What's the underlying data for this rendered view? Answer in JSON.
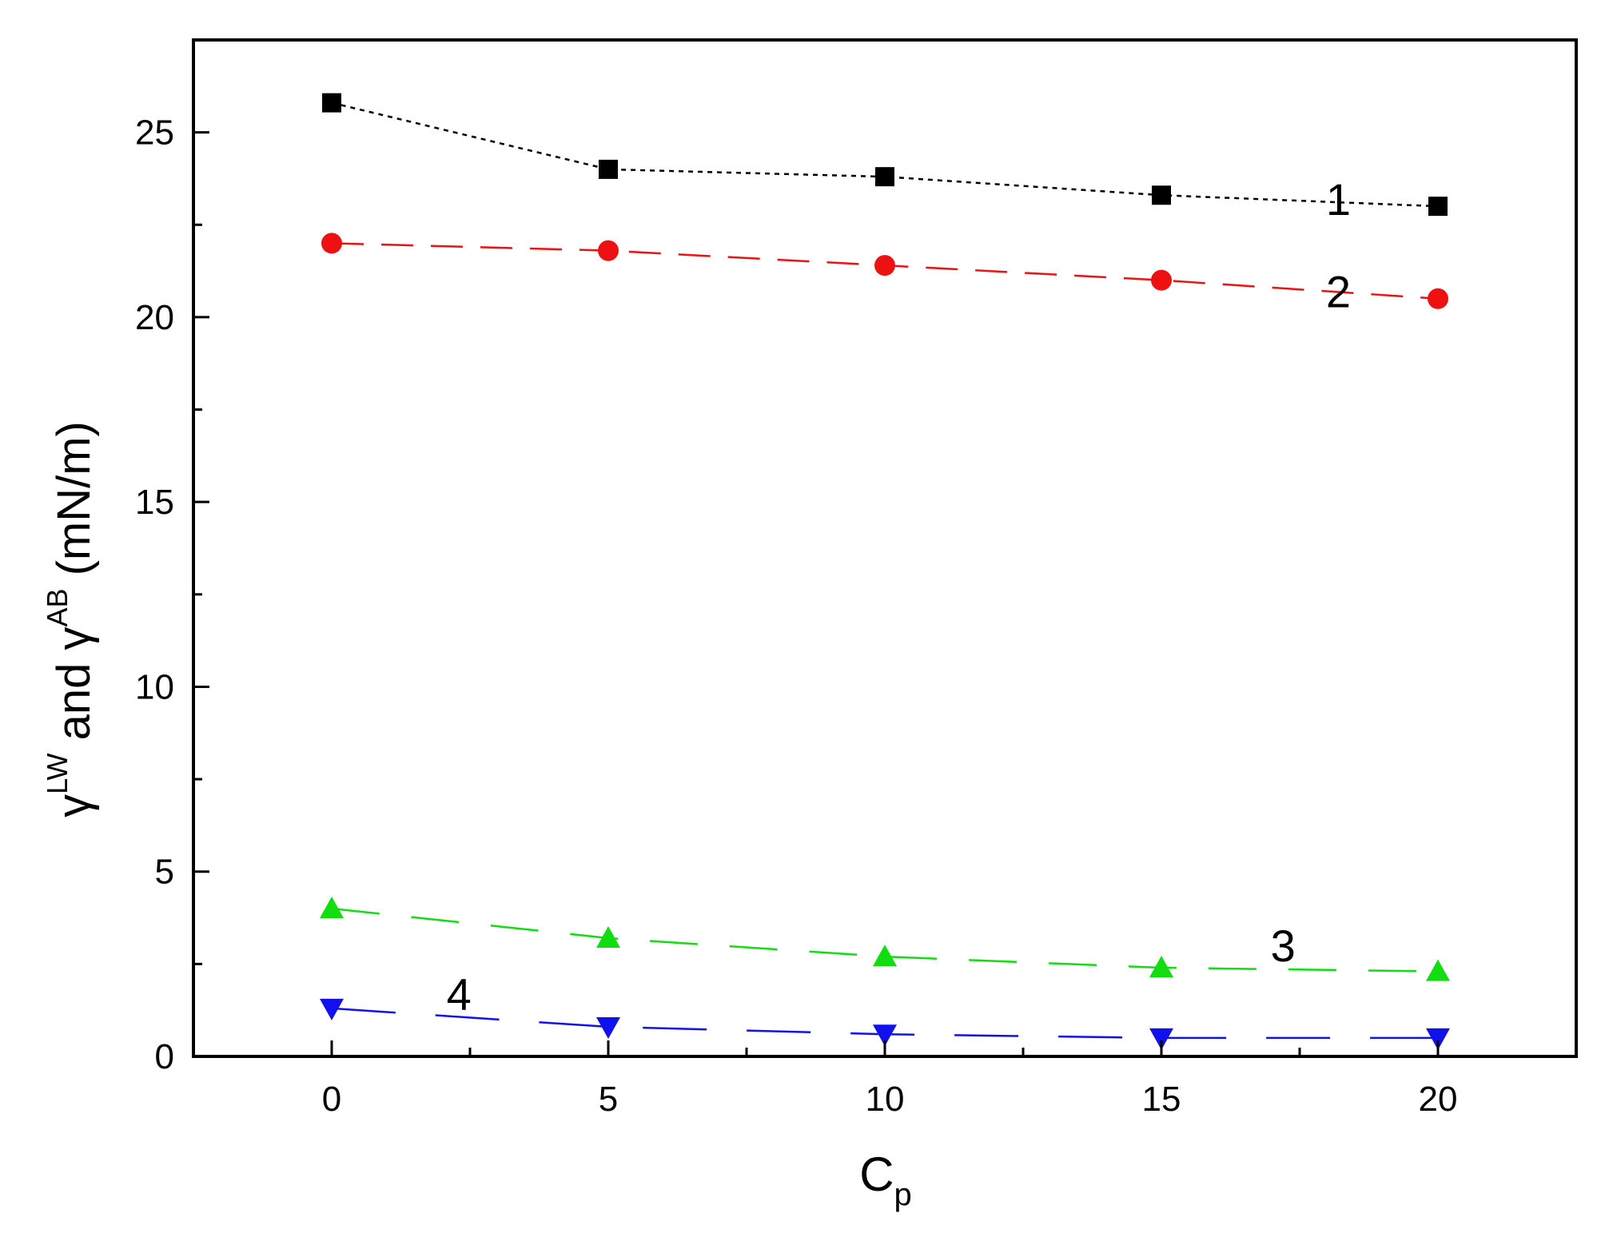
{
  "chart_data": {
    "type": "line",
    "xlabel": {
      "main": "C",
      "sub": "p"
    },
    "ylabel": {
      "g1": "γ",
      "sup1": "LW",
      "mid": " and ",
      "g2": "γ",
      "sup2": "AB",
      "unit": " (mN/m)"
    },
    "xlim": [
      -2.5,
      22.5
    ],
    "ylim": [
      0,
      27.5
    ],
    "xticks": [
      0,
      5,
      10,
      15,
      20
    ],
    "xtick_labels": [
      "0",
      "5",
      "10",
      "15",
      "20"
    ],
    "yticks": [
      0,
      5,
      10,
      15,
      20,
      25
    ],
    "ytick_labels": [
      "0",
      "5",
      "10",
      "15",
      "20",
      "25"
    ],
    "grid": false,
    "x": [
      0,
      5,
      10,
      15,
      20
    ],
    "series": [
      {
        "label": "1",
        "marker": "square",
        "color": "#000000",
        "values": [
          25.8,
          24.0,
          23.8,
          23.3,
          23.0
        ],
        "label_at": [
          18.2,
          23.2
        ]
      },
      {
        "label": "2",
        "marker": "circle",
        "color": "#ee1111",
        "values": [
          22.0,
          21.8,
          21.4,
          21.0,
          20.5
        ],
        "label_at": [
          18.2,
          20.7
        ]
      },
      {
        "label": "3",
        "marker": "triangle-up",
        "color": "#11dd11",
        "values": [
          4.0,
          3.2,
          2.7,
          2.4,
          2.3
        ],
        "label_at": [
          17.2,
          3.0
        ]
      },
      {
        "label": "4",
        "marker": "triangle-down",
        "color": "#1111ee",
        "values": [
          1.3,
          0.8,
          0.6,
          0.5,
          0.5
        ],
        "label_at": [
          2.3,
          1.7
        ]
      }
    ]
  }
}
